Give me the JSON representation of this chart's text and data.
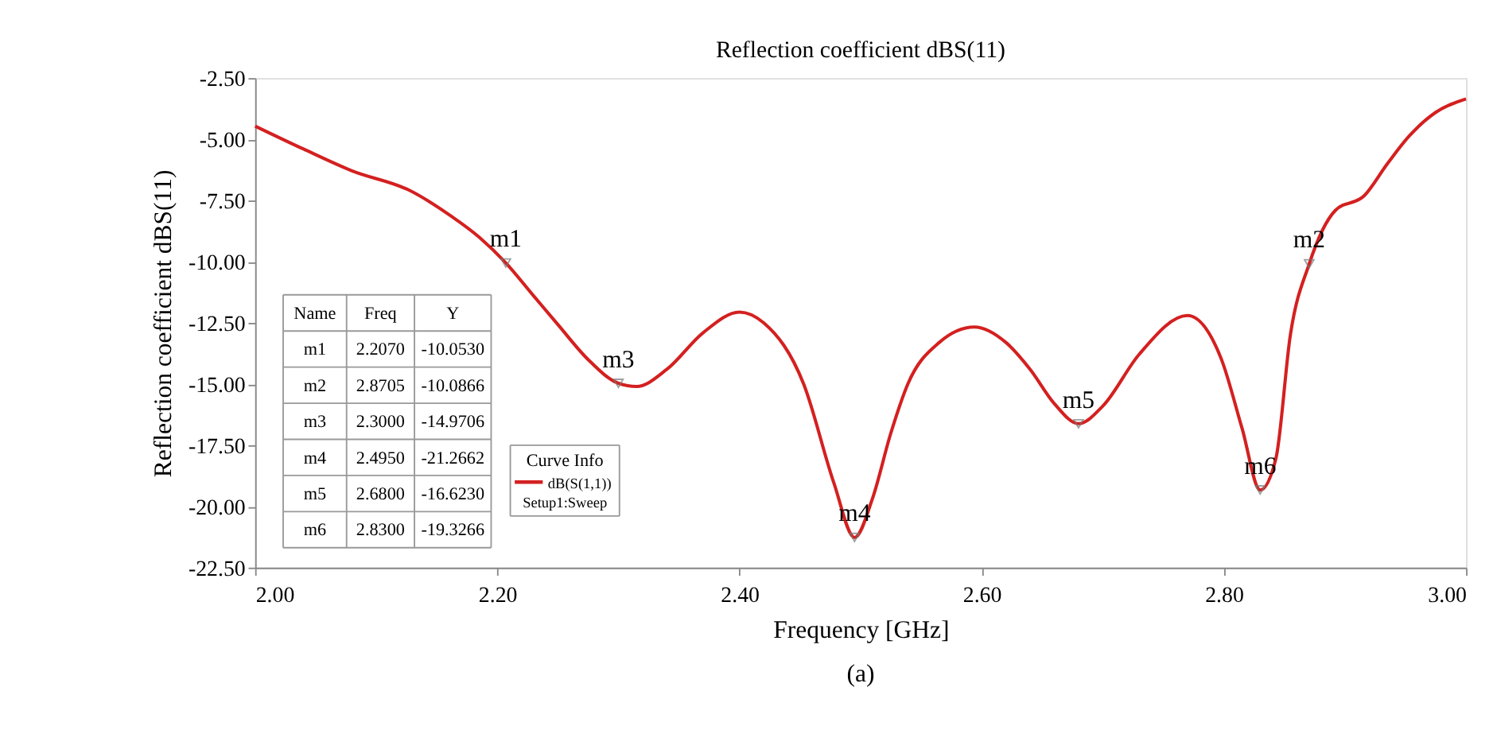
{
  "chart_data": {
    "type": "line",
    "title": "Reflection coefficient dBS(11)",
    "xlabel": "Frequency [GHz]",
    "ylabel": "Reflection coefficient dBS(11)",
    "legend_title": "Curve Info",
    "xlim": [
      2.0,
      3.0
    ],
    "ylim": [
      -22.5,
      -2.5
    ],
    "xticks": [
      {
        "value": 2.0,
        "label": "2.00"
      },
      {
        "value": 2.2,
        "label": "2.20"
      },
      {
        "value": 2.4,
        "label": "2.40"
      },
      {
        "value": 2.6,
        "label": "2.60"
      },
      {
        "value": 2.8,
        "label": "2.80"
      },
      {
        "value": 3.0,
        "label": "3.00"
      }
    ],
    "yticks": [
      {
        "value": -2.5,
        "label": "-2.50"
      },
      {
        "value": -5,
        "label": "-5.00"
      },
      {
        "value": -7.5,
        "label": "-7.50"
      },
      {
        "value": -10,
        "label": "-10.00"
      },
      {
        "value": -12.5,
        "label": "-12.50"
      },
      {
        "value": -15,
        "label": "-15.00"
      },
      {
        "value": -17.5,
        "label": "-17.50"
      },
      {
        "value": -20,
        "label": "-20.00"
      },
      {
        "value": -22.5,
        "label": "-22.50"
      }
    ],
    "grid": false,
    "legend": "bottom left",
    "marker": "none",
    "line_style": "solid",
    "series": [
      {
        "name": "dB(S(1,1))",
        "color": "#d42020",
        "x": [
          2.0,
          2.04,
          2.08,
          2.128,
          2.161,
          2.185,
          2.207,
          2.23,
          2.25,
          2.275,
          2.3,
          2.315,
          2.34,
          2.37,
          2.4,
          2.42,
          2.453,
          2.478,
          2.495,
          2.51,
          2.525,
          2.539,
          2.565,
          2.594,
          2.62,
          2.64,
          2.66,
          2.68,
          2.7,
          2.73,
          2.77,
          2.798,
          2.815,
          2.83,
          2.843,
          2.855,
          2.8705,
          2.892,
          2.916,
          2.935,
          2.953,
          2.975,
          3.0
        ],
        "values": [
          -4.46,
          -5.4,
          -6.29,
          -7.1,
          -8.11,
          -9.0,
          -10.05,
          -11.4,
          -12.57,
          -14.0,
          -14.97,
          -15.1,
          -14.4,
          -12.9,
          -12.06,
          -12.5,
          -15.0,
          -19.05,
          -21.27,
          -19.65,
          -17.0,
          -15.0,
          -13.3,
          -12.67,
          -13.3,
          -14.4,
          -15.8,
          -16.62,
          -15.9,
          -13.79,
          -12.2,
          -13.99,
          -16.8,
          -19.33,
          -18.04,
          -12.97,
          -10.09,
          -7.91,
          -7.3,
          -6.0,
          -4.87,
          -3.9,
          -3.35
        ]
      }
    ],
    "annotations": [
      {
        "text": "m1",
        "x": 2.207,
        "y": -10.053
      },
      {
        "text": "m2",
        "x": 2.8705,
        "y": -10.0866
      },
      {
        "text": "m3",
        "x": 2.3,
        "y": -14.9706
      },
      {
        "text": "m4",
        "x": 2.495,
        "y": -21.2662
      },
      {
        "text": "m5",
        "x": 2.68,
        "y": -16.623
      },
      {
        "text": "m6",
        "x": 2.83,
        "y": -19.3266
      },
      "Name",
      "Freq",
      "Y",
      "m1",
      "2.2070",
      "-10.0530",
      "m2",
      "2.8705",
      "-10.0866",
      "m3",
      "2.3000",
      "-14.9706",
      "m4",
      "2.4950",
      "-21.2662",
      "m5",
      "2.6800",
      "-16.6230",
      "m6",
      "2.8300",
      "-19.3266",
      "Setup1:Sweep",
      "(a)"
    ]
  }
}
